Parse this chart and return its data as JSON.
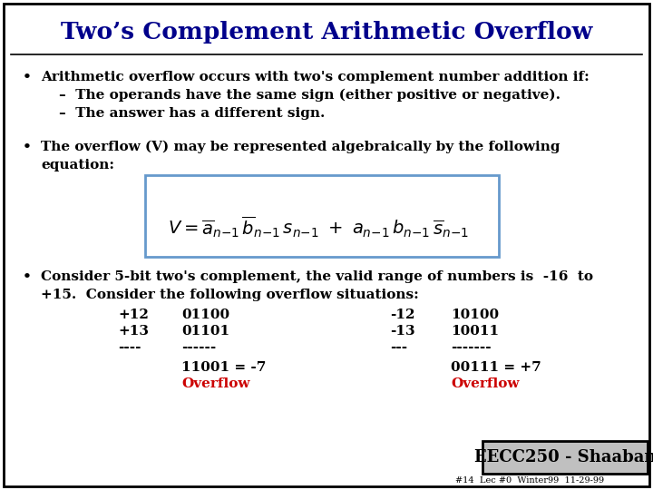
{
  "title": "Two’s Complement Arithmetic Overflow",
  "bg_color": "#ffffff",
  "border_color": "#000000",
  "title_color": "#00008B",
  "text_color": "#000000",
  "red_color": "#CC0000",
  "box_border_color": "#6699CC",
  "footer_bg": "#C0C0C0",
  "footer_text": "EECC250 - Shaaban",
  "footer_small": "#14  Lec #0  Winter99  11-29-99",
  "bullet1_line1": "Arithmetic overflow occurs with two's complement number addition if:",
  "bullet1_sub1": "–  The operands have the same sign (either positive or negative).",
  "bullet1_sub2": "–  The answer has a different sign.",
  "bullet2_line1": "The overflow (V) may be represented algebraically by the following",
  "bullet2_line2": "equation:",
  "bullet3_line1": "Consider 5-bit two's complement, the valid range of numbers is  -16  to",
  "bullet3_line2": "+15.  Consider the following overflow situations:"
}
